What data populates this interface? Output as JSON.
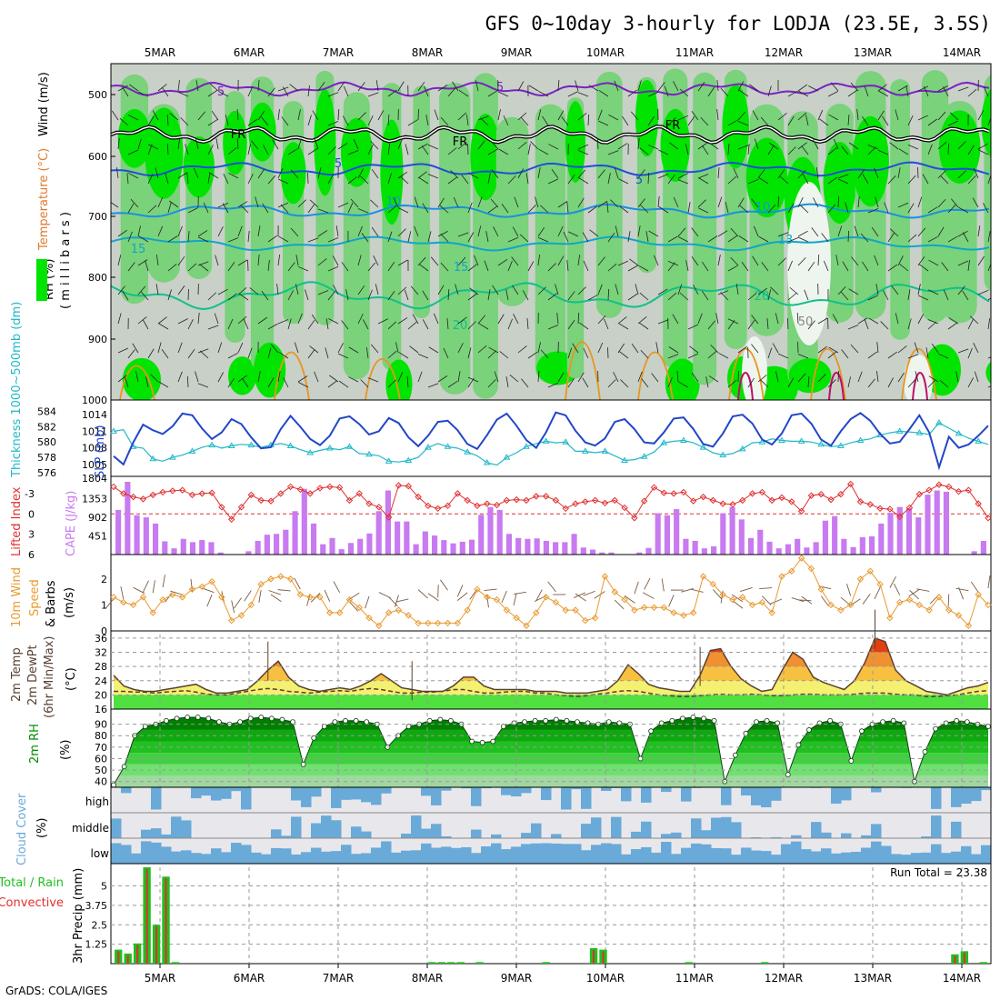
{
  "title": "GFS 0~10day 3-hourly for LODJA (23.5E, 3.5S)",
  "credit": "GrADS: COLA/IGES",
  "dates": [
    "5MAR",
    "6MAR",
    "7MAR",
    "8MAR",
    "9MAR",
    "10MAR",
    "11MAR",
    "12MAR",
    "13MAR",
    "14MAR"
  ],
  "colors": {
    "rh_light": "#c8d0c8",
    "rh_mid": "#7ad27a",
    "rh_bright": "#00e400",
    "wind": "#7a22c4",
    "freeze": "#000000",
    "temp_blue": "#1e4fd6",
    "temp_cyan": "#10a6c8",
    "temp_green": "#10c08a",
    "slp": "#2246c8",
    "thick": "#20b8c8",
    "cape": "#c87af0",
    "li": "#e03030",
    "wind10": "#e89a30",
    "t2m": "#5a4030",
    "rh2m": "#009000",
    "cloud": "#6aaad8",
    "cloud_bg": "#e8e8ec",
    "precip_total": "#20c020",
    "precip_conv": "#e03030"
  },
  "panels": {
    "upper": {
      "label_rh": "RH (%)",
      "label_temp": "Temperature (°C)",
      "label_wind": "Wind (m/s)",
      "label_mb": "( m i l l i b a r s )",
      "yticks": [
        "500",
        "600",
        "700",
        "800",
        "900",
        "1000"
      ],
      "contour_labels": [
        "5",
        "5",
        "FR",
        "FR",
        "FR",
        "5",
        "5",
        "10",
        "10",
        "15",
        "15",
        "13",
        "20",
        "20",
        "50"
      ]
    },
    "slp": {
      "label_thick": "Thickness 1000~500mb (dm)",
      "label_slp": "SLP (mb)",
      "thick_ticks": [
        "584",
        "582",
        "580",
        "578",
        "576"
      ],
      "slp_ticks": [
        "1014",
        "1011",
        "1008",
        "1005"
      ],
      "slp_bottom": "1804"
    },
    "cape": {
      "label_li": "Lifted Index",
      "label_cape": "CAPE (J/kg)",
      "li_ticks": [
        "-3",
        "0",
        "3",
        "6"
      ],
      "cape_ticks": [
        "1353",
        "902",
        "451"
      ]
    },
    "wind10": {
      "label_a": "10m Wind",
      "label_b": "Speed",
      "label_c": "& Barbs",
      "label_unit": "(m/s)",
      "yticks": [
        "2",
        "1",
        "0"
      ]
    },
    "t2m": {
      "label_a": "2m Temp",
      "label_b": "2m DewPt",
      "label_c": "(6hr Min/Max)",
      "label_unit": "(°C)",
      "yticks": [
        "36",
        "32",
        "28",
        "24",
        "20",
        "16"
      ]
    },
    "rh2m": {
      "label_a": "2m RH",
      "label_unit": "(%)",
      "yticks": [
        "90",
        "80",
        "70",
        "60",
        "50",
        "40"
      ]
    },
    "cloud": {
      "label_a": "Cloud Cover",
      "label_unit": "(%)",
      "levels": [
        "high",
        "middle",
        "low"
      ]
    },
    "precip": {
      "label_a": "Total / Rain",
      "label_b": "Convective",
      "label_c": "3hr Precip (mm)",
      "run_total": "Run Total = 23.38",
      "yticks": [
        "5",
        "3.75",
        "2.5",
        "1.25"
      ]
    }
  },
  "chart_data": [
    {
      "type": "line",
      "name": "Thickness 1000~500mb (dm)",
      "xlabel": "",
      "ylabel": "Thickness 1000~500mb (dm)",
      "ylim": [
        576,
        585
      ],
      "values": [
        581.4,
        581.6,
        579.4,
        579.2,
        577.8,
        577.5,
        578.0,
        578.3,
        578.8,
        579.3,
        579.6,
        579.2,
        579.5,
        579.7,
        579.6,
        579.3,
        579.6,
        579.8,
        579.5,
        579.0,
        578.6,
        578.9,
        579.2,
        579.0,
        579.4,
        578.5,
        578.4,
        578.2,
        577.5,
        577.4,
        577.6,
        578.0,
        579.3,
        579.8,
        579.4,
        579.2,
        578.7,
        578.2,
        577.3,
        577.0,
        578.0,
        578.6,
        579.4,
        579.8,
        580.1,
        579.9,
        580.0,
        578.8,
        578.8,
        578.6,
        578.8,
        578.2,
        577.6,
        577.7,
        578.1,
        578.7,
        579.9,
        580.1,
        580.2,
        579.9,
        579.3,
        578.6,
        578.3,
        578.5,
        579.1,
        579.9,
        580.0,
        580.4,
        580.2,
        580.1,
        580.1,
        580.0,
        579.7,
        579.4,
        579.5,
        579.9,
        580.2,
        580.4,
        580.9,
        581.2,
        581.4,
        581.3,
        581.2,
        581.0,
        582.5,
        581.8,
        581.1,
        580.5,
        580.1,
        579.7
      ]
    },
    {
      "type": "line",
      "name": "SLP (mb)",
      "ylabel": "SLP (mb)",
      "ylim": [
        1003.5,
        1016
      ],
      "values": [
        1006.5,
        1005.0,
        1009.0,
        1012.2,
        1011.2,
        1010.5,
        1011.9,
        1014.2,
        1013.9,
        1011.5,
        1009.6,
        1010.8,
        1013.2,
        1012.3,
        1009.9,
        1007.9,
        1008.1,
        1011.4,
        1013.8,
        1011.8,
        1009.6,
        1008.5,
        1010.2,
        1013.3,
        1013.7,
        1012.3,
        1010.4,
        1011.0,
        1013.4,
        1012.5,
        1009.9,
        1008.3,
        1010.2,
        1012.7,
        1012.9,
        1011.2,
        1008.7,
        1007.8,
        1010.3,
        1013.1,
        1014.2,
        1012.0,
        1009.4,
        1008.0,
        1010.8,
        1014.4,
        1013.9,
        1011.1,
        1009.0,
        1008.4,
        1009.7,
        1012.7,
        1013.2,
        1011.4,
        1009.0,
        1008.8,
        1010.8,
        1013.3,
        1013.5,
        1011.4,
        1008.7,
        1008.2,
        1010.6,
        1013.7,
        1014.0,
        1012.4,
        1009.5,
        1008.6,
        1010.6,
        1013.9,
        1014.2,
        1012.4,
        1009.5,
        1008.4,
        1011.0,
        1013.2,
        1014.3,
        1012.9,
        1010.5,
        1008.8,
        1009.1,
        1011.4,
        1013.9,
        1010.8,
        1004.5,
        1010.0,
        1008.0,
        1008.6,
        1010.2,
        1012.0
      ]
    },
    {
      "type": "bar",
      "name": "CAPE (J/kg)",
      "ylabel": "CAPE (J/kg)",
      "ylim": [
        0,
        1804
      ],
      "values": [
        1080,
        1760,
        950,
        900,
        750,
        320,
        150,
        380,
        300,
        350,
        300,
        50,
        0,
        0,
        80,
        330,
        480,
        500,
        600,
        1050,
        1590,
        750,
        250,
        400,
        130,
        280,
        380,
        510,
        1050,
        1550,
        800,
        800,
        250,
        560,
        460,
        350,
        270,
        310,
        360,
        960,
        1150,
        1080,
        500,
        400,
        380,
        390,
        330,
        300,
        300,
        500,
        170,
        120,
        50,
        50,
        10,
        0,
        50,
        160,
        1000,
        950,
        1100,
        380,
        330,
        150,
        200,
        1000,
        1150,
        850,
        400,
        600,
        310,
        150,
        250,
        380,
        170,
        300,
        820,
        930,
        380,
        180,
        420,
        440,
        750,
        1010,
        1150,
        1120,
        900,
        1450,
        1550,
        1520,
        0,
        0,
        80,
        330
      ]
    },
    {
      "type": "line",
      "name": "Lifted Index",
      "ylabel": "Lifted Index",
      "ylim": [
        -5,
        6
      ],
      "values": [
        -4.0,
        -3.0,
        -2.5,
        -2.2,
        -2.8,
        -3.2,
        -3.4,
        -3.5,
        -2.8,
        -3.0,
        -3.1,
        -1.0,
        0.8,
        -1.0,
        -2.8,
        -2.0,
        -1.9,
        -3.0,
        -4.0,
        -3.6,
        -3.0,
        -3.8,
        -4.0,
        -3.9,
        -2.0,
        -3.0,
        -1.5,
        -1.0,
        0.5,
        -4.2,
        -4.1,
        -2.5,
        -1.2,
        -0.8,
        -1.2,
        -3.0,
        -2.0,
        -1.2,
        -1.5,
        -1.3,
        -2.0,
        -2.1,
        -2.0,
        -2.6,
        -2.6,
        -2.0,
        -0.8,
        -1.5,
        -1.8,
        -2.0,
        -1.6,
        -2.0,
        -0.9,
        0.6,
        -1.9,
        -3.9,
        -3.1,
        -3.0,
        -3.2,
        -1.9,
        -2.5,
        -2.0,
        -1.5,
        -1.4,
        -2.0,
        -3.0,
        -3.2,
        -2.0,
        -2.4,
        -1.8,
        -0.4,
        -2.7,
        -2.9,
        -2.1,
        -2.9,
        -4.4,
        -1.8,
        -1.4,
        -0.8,
        -0.7,
        0.4,
        -0.9,
        -2.9,
        -3.5,
        -4.3,
        -4.0,
        -3.3,
        -3.5,
        -1.5,
        0.6
      ]
    },
    {
      "type": "line",
      "name": "10m Wind Speed",
      "ylabel": "Speed (m/s)",
      "ylim": [
        0,
        2.8
      ],
      "values": [
        1.3,
        1.1,
        1.0,
        1.3,
        0.7,
        1.2,
        1.4,
        1.3,
        1.6,
        1.7,
        1.9,
        1.3,
        0.4,
        0.6,
        1.0,
        1.8,
        2.0,
        2.1,
        2.0,
        1.4,
        1.3,
        1.3,
        0.7,
        0.7,
        1.2,
        0.9,
        0.5,
        0.2,
        0.7,
        0.8,
        0.6,
        0.3,
        0.3,
        0.3,
        0.3,
        0.3,
        0.8,
        1.6,
        1.3,
        1.2,
        0.8,
        0.5,
        0.2,
        0.7,
        1.3,
        1.1,
        0.8,
        0.8,
        0.4,
        0.5,
        2.1,
        1.5,
        1.2,
        0.8,
        0.9,
        0.9,
        0.9,
        0.7,
        0.6,
        0.7,
        2.1,
        1.8,
        1.4,
        1.2,
        1.3,
        1.0,
        1.1,
        0.7,
        2.1,
        2.3,
        2.8,
        2.4,
        1.6,
        1.0,
        0.8,
        1.0,
        2.0,
        2.3,
        1.8,
        0.5,
        1.1,
        1.2,
        1.0,
        0.8,
        1.3,
        0.8,
        0.6,
        0.2,
        1.4,
        1.0
      ]
    },
    {
      "type": "area",
      "name": "2m Temp",
      "ylabel": "2m Temp (°C)",
      "ylim": [
        16,
        37
      ],
      "values": [
        25.5,
        22.5,
        21.5,
        21.0,
        21.0,
        21.5,
        22.0,
        22.5,
        23.0,
        21.5,
        20.5,
        20.5,
        21.0,
        21.5,
        24.0,
        27.0,
        29.5,
        25.0,
        22.5,
        21.5,
        21.0,
        21.5,
        22.0,
        21.5,
        22.5,
        24.0,
        26.0,
        24.0,
        22.0,
        21.5,
        21.0,
        21.0,
        21.0,
        22.5,
        25.0,
        25.0,
        22.5,
        21.5,
        21.5,
        21.5,
        21.5,
        21.0,
        21.0,
        21.0,
        20.5,
        20.5,
        20.5,
        21.0,
        21.5,
        24.0,
        28.5,
        26.0,
        23.0,
        22.0,
        21.5,
        21.0,
        21.0,
        25.5,
        32.5,
        33.0,
        28.0,
        24.5,
        22.5,
        21.0,
        21.5,
        27.0,
        32.0,
        30.0,
        25.0,
        23.5,
        22.5,
        21.5,
        24.0,
        29.0,
        36.0,
        35.0,
        27.0,
        24.0,
        22.5,
        21.0,
        20.5,
        20.0,
        21.0,
        22.0,
        22.5,
        23.5
      ]
    },
    {
      "type": "line",
      "name": "2m DewPt",
      "ylabel": "2m DewPt (°C)",
      "ylim": [
        16,
        37
      ],
      "values": [
        21.0,
        21.0,
        20.8,
        20.8,
        20.5,
        20.8,
        21.0,
        21.2,
        20.8,
        20.2,
        20.0,
        20.0,
        20.5,
        21.0,
        21.5,
        21.8,
        21.5,
        21.0,
        20.8,
        20.5,
        20.8,
        21.0,
        21.2,
        21.0,
        21.5,
        21.8,
        21.5,
        21.0,
        20.5,
        20.5,
        20.8,
        20.8,
        21.0,
        21.5,
        21.5,
        21.0,
        20.5,
        20.5,
        20.8,
        21.0,
        21.0,
        20.5,
        20.5,
        20.0,
        19.8,
        19.5,
        19.8,
        20.2,
        20.5,
        21.0,
        21.2,
        21.0,
        20.5,
        20.0,
        19.8,
        19.5,
        19.5,
        19.8,
        20.0,
        20.2,
        20.0,
        20.0,
        20.2,
        20.0,
        19.8,
        19.8,
        20.0,
        20.2,
        20.2,
        20.0,
        20.0,
        20.0,
        20.2,
        20.5,
        20.5,
        20.5,
        20.2,
        20.0,
        20.0,
        19.5,
        19.5,
        19.8,
        20.0,
        20.5,
        21.0,
        21.2
      ]
    },
    {
      "type": "area",
      "name": "2m RH",
      "ylabel": "2m RH (%)",
      "ylim": [
        35,
        100
      ],
      "values": [
        37,
        53,
        80,
        88,
        90,
        93,
        95,
        96,
        96,
        95,
        92,
        90,
        92,
        95,
        96,
        95,
        94,
        92,
        55,
        78,
        88,
        92,
        93,
        93,
        92,
        90,
        70,
        80,
        88,
        90,
        93,
        94,
        93,
        90,
        75,
        74,
        75,
        88,
        91,
        92,
        93,
        93,
        94,
        93,
        92,
        91,
        90,
        92,
        91,
        90,
        60,
        84,
        91,
        93,
        95,
        96,
        95,
        93,
        40,
        63,
        82,
        92,
        93,
        91,
        46,
        72,
        85,
        91,
        93,
        90,
        58,
        84,
        90,
        92,
        93,
        91,
        40,
        66,
        86,
        91,
        93,
        92,
        90,
        88
      ]
    },
    {
      "type": "bar",
      "name": "3hr Precip Total",
      "ylabel": "3hr Precip (mm)",
      "ylim": [
        0,
        6.2
      ],
      "values": [
        0.9,
        0.65,
        1.3,
        6.2,
        2.5,
        5.6,
        0.1,
        0,
        0,
        0,
        0,
        0,
        0,
        0,
        0,
        0,
        0,
        0,
        0,
        0,
        0,
        0,
        0,
        0,
        0,
        0,
        0,
        0,
        0,
        0,
        0,
        0,
        0,
        0.1,
        0.1,
        0.1,
        0.1,
        0,
        0.1,
        0,
        0,
        0,
        0,
        0,
        0,
        0.1,
        0,
        0,
        0,
        0,
        1.0,
        0.9,
        0,
        0,
        0,
        0,
        0,
        0,
        0,
        0,
        0.1,
        0,
        0,
        0,
        0,
        0,
        0,
        0,
        0.1,
        0,
        0,
        0,
        0,
        0,
        0,
        0,
        0,
        0,
        0,
        0,
        0,
        0,
        0,
        0,
        0,
        0,
        0,
        0,
        0.6,
        0.8,
        0,
        0.1
      ]
    }
  ]
}
